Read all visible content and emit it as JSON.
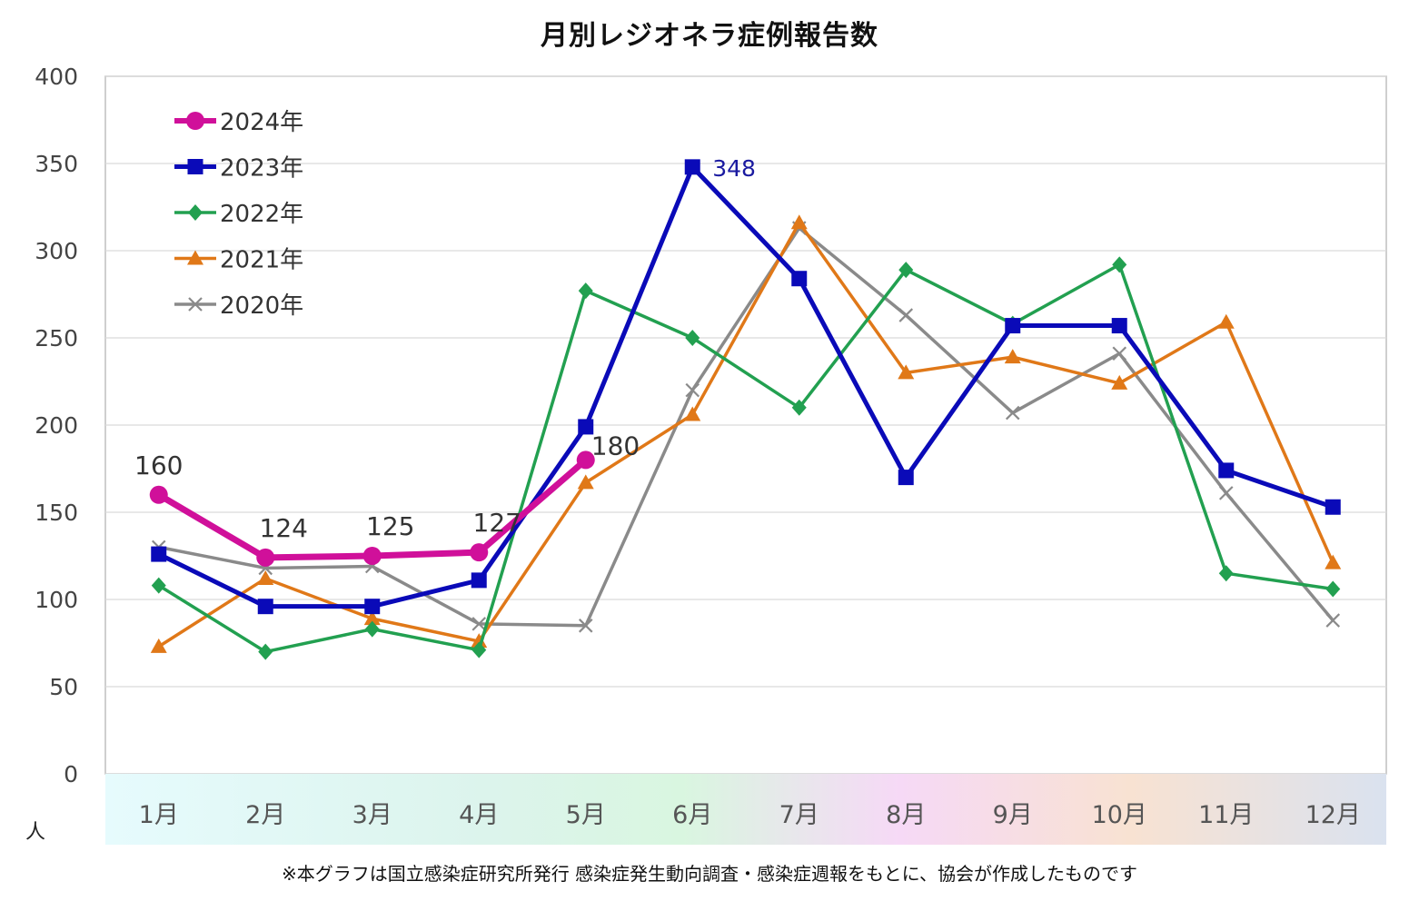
{
  "chart_data": {
    "type": "line",
    "title": "月別レジオネラ症例報告数",
    "ylabel": "人",
    "xlabel": "",
    "ylim": [
      0,
      400
    ],
    "yticks": [
      0,
      50,
      100,
      150,
      200,
      250,
      300,
      350,
      400
    ],
    "grid": true,
    "legend_position": "top-left",
    "categories": [
      "1月",
      "2月",
      "3月",
      "4月",
      "5月",
      "6月",
      "7月",
      "8月",
      "9月",
      "10月",
      "11月",
      "12月"
    ],
    "series": [
      {
        "name": "2024年",
        "color": "#d0109a",
        "marker": "circle",
        "values": [
          160,
          124,
          125,
          127,
          180,
          null,
          null,
          null,
          null,
          null,
          null,
          null
        ],
        "labels": [
          "160",
          "124",
          "125",
          "127",
          "180",
          "",
          "",
          "",
          "",
          "",
          "",
          ""
        ]
      },
      {
        "name": "2023年",
        "color": "#0a0ab8",
        "marker": "square",
        "values": [
          126,
          96,
          96,
          111,
          199,
          348,
          284,
          170,
          257,
          257,
          174,
          153
        ],
        "labels": [
          "",
          "",
          "",
          "",
          "",
          "348",
          "",
          "",
          "",
          "",
          "",
          ""
        ]
      },
      {
        "name": "2022年",
        "color": "#22a050",
        "marker": "diamond",
        "values": [
          108,
          70,
          83,
          71,
          277,
          250,
          210,
          289,
          258,
          292,
          115,
          106
        ],
        "labels": [
          "",
          "",
          "",
          "",
          "",
          "",
          "",
          "",
          "",
          "",
          "",
          ""
        ]
      },
      {
        "name": "2021年",
        "color": "#e07818",
        "marker": "triangle",
        "values": [
          73,
          112,
          89,
          76,
          167,
          206,
          316,
          230,
          239,
          224,
          259,
          121
        ],
        "labels": [
          "",
          "",
          "",
          "",
          "",
          "",
          "",
          "",
          "",
          "",
          "",
          ""
        ]
      },
      {
        "name": "2020年",
        "color": "#8a8a8a",
        "marker": "x",
        "values": [
          130,
          118,
          119,
          86,
          85,
          220,
          313,
          263,
          207,
          241,
          161,
          88
        ],
        "labels": [
          "",
          "",
          "",
          "",
          "",
          "",
          "",
          "",
          "",
          "",
          "",
          ""
        ]
      }
    ]
  },
  "footnote": "※本グラフは国立感染症研究所発行 感染症発生動向調査・感染症週報をもとに、協会が作成したものです",
  "colors": {
    "grid": "#d9d9d9",
    "axis_text": "#555555",
    "band_start": "#e8fbfd",
    "band_mid": "#dff5e8",
    "band_pink": "#f8dcf6",
    "band_orange": "#f8e4d4",
    "band_end": "#dde4f0"
  }
}
